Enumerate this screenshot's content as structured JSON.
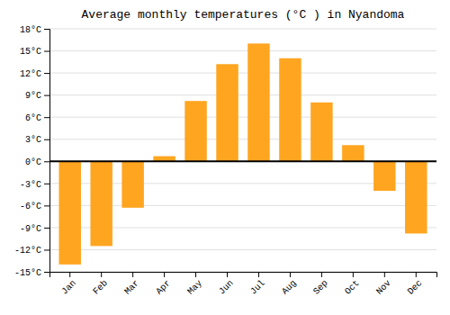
{
  "chart_data": {
    "type": "bar",
    "title": "Average monthly temperatures (°C ) in Nyandoma",
    "categories": [
      "Jan",
      "Feb",
      "Mar",
      "Apr",
      "May",
      "Jun",
      "Jul",
      "Aug",
      "Sep",
      "Oct",
      "Nov",
      "Dec"
    ],
    "values": [
      -14,
      -11.5,
      -6.3,
      0.7,
      8.2,
      13.2,
      16.0,
      14.0,
      8.0,
      2.2,
      -4.0,
      -9.8
    ],
    "color": "#FFA520",
    "ylim": [
      -15,
      18
    ],
    "yticks": [
      {
        "value": -15,
        "label": "-15°C"
      },
      {
        "value": -12,
        "label": "-12°C"
      },
      {
        "value": -9,
        "label": "-9°C"
      },
      {
        "value": -6,
        "label": "-6°C"
      },
      {
        "value": -3,
        "label": "-3°C"
      },
      {
        "value": 0,
        "label": "0°C"
      },
      {
        "value": 3,
        "label": "3°C"
      },
      {
        "value": 6,
        "label": "6°C"
      },
      {
        "value": 9,
        "label": "9°C"
      },
      {
        "value": 12,
        "label": "12°C"
      },
      {
        "value": 15,
        "label": "15°C"
      },
      {
        "value": 18,
        "label": "18°C"
      }
    ],
    "grid": true
  }
}
